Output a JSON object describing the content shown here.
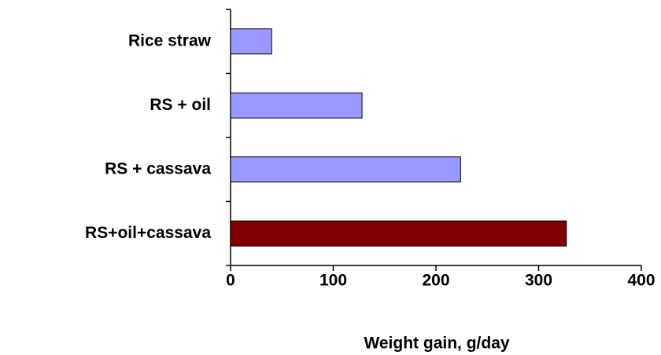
{
  "chart_data": {
    "type": "bar",
    "orientation": "horizontal",
    "categories": [
      "Rice straw",
      "RS + oil",
      "RS + cassava",
      "RS+oil+cassava"
    ],
    "values": [
      40,
      128,
      224,
      327
    ],
    "colors": [
      "#9999ff",
      "#9999ff",
      "#9999ff",
      "#800000"
    ],
    "xlabel": "Weight gain, g/day",
    "xlim": [
      0,
      400
    ],
    "xticks": [
      0,
      100,
      200,
      300,
      400
    ],
    "grid": false
  }
}
